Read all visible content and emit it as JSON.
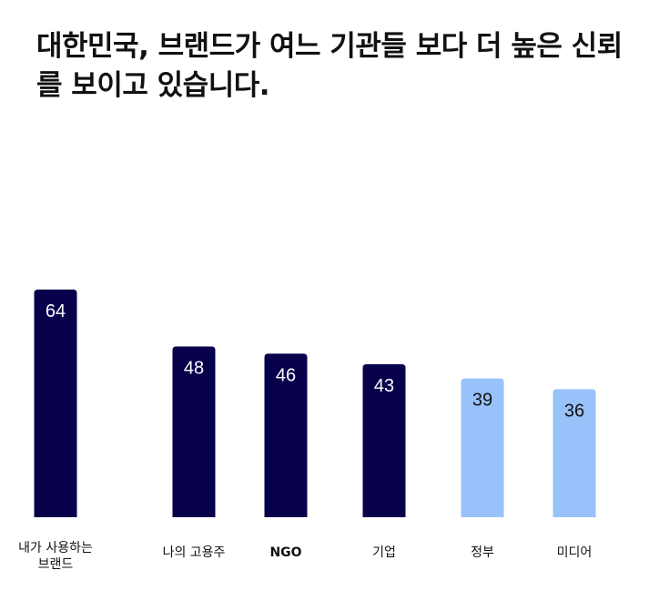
{
  "title": "대한민국, 브랜드가 여느 기관들 보다 더 높은 신뢰를 보이고 있습니다.",
  "colors": {
    "dark": "#07004b",
    "light": "#99c2fb",
    "text_on_dark": "#ffffff",
    "text_on_light": "#111111"
  },
  "chart_data": {
    "type": "bar",
    "title": "대한민국, 브랜드가 여느 기관들 보다 더 높은 신뢰를 보이고 있습니다.",
    "categories": [
      [
        "내가 사용하는",
        "브랜드"
      ],
      [
        "나의 고용주"
      ],
      [
        "NGO"
      ],
      [
        "기업"
      ],
      [
        "정부"
      ],
      [
        "미디어"
      ]
    ],
    "values": [
      64,
      48,
      46,
      43,
      39,
      36
    ],
    "bar_colors": [
      "dark",
      "dark",
      "dark",
      "dark",
      "light",
      "light"
    ],
    "ylim": [
      0,
      100
    ],
    "grid": false,
    "legend": "none",
    "xlabel": "",
    "ylabel": ""
  }
}
